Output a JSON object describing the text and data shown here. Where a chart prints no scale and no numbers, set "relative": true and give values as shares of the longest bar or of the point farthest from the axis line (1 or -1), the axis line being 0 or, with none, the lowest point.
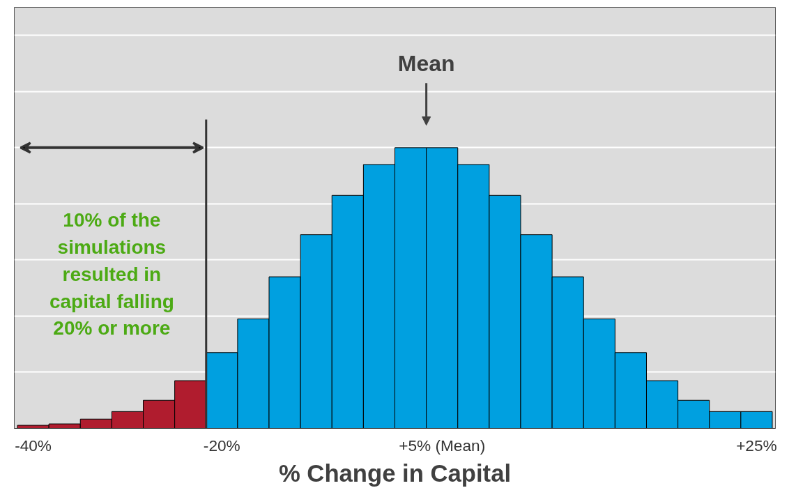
{
  "chart_data": {
    "type": "bar",
    "relative": true,
    "xlabel": "% Change in Capital",
    "categories": [
      "-40%",
      null,
      null,
      null,
      null,
      null,
      "-20%",
      null,
      null,
      null,
      null,
      null,
      null,
      "+5% (Mean)",
      null,
      null,
      null,
      null,
      null,
      null,
      null,
      null,
      null,
      "+25%"
    ],
    "values": [
      0.011,
      0.016,
      0.033,
      0.06,
      0.1,
      0.17,
      0.27,
      0.39,
      0.54,
      0.69,
      0.83,
      0.94,
      1.0,
      1.0,
      0.94,
      0.83,
      0.69,
      0.54,
      0.39,
      0.27,
      0.17,
      0.1,
      0.06,
      0.06
    ],
    "colors": [
      "#b01c2e",
      "#b01c2e",
      "#b01c2e",
      "#b01c2e",
      "#b01c2e",
      "#b01c2e",
      "#00a0e0",
      "#00a0e0",
      "#00a0e0",
      "#00a0e0",
      "#00a0e0",
      "#00a0e0",
      "#00a0e0",
      "#00a0e0",
      "#00a0e0",
      "#00a0e0",
      "#00a0e0",
      "#00a0e0",
      "#00a0e0",
      "#00a0e0",
      "#00a0e0",
      "#00a0e0",
      "#00a0e0",
      "#00a0e0"
    ],
    "annotations": [
      "Mean",
      "10% of the\nsimulations\nresulted in\ncapital falling\n20% or more"
    ],
    "grid": "y"
  }
}
